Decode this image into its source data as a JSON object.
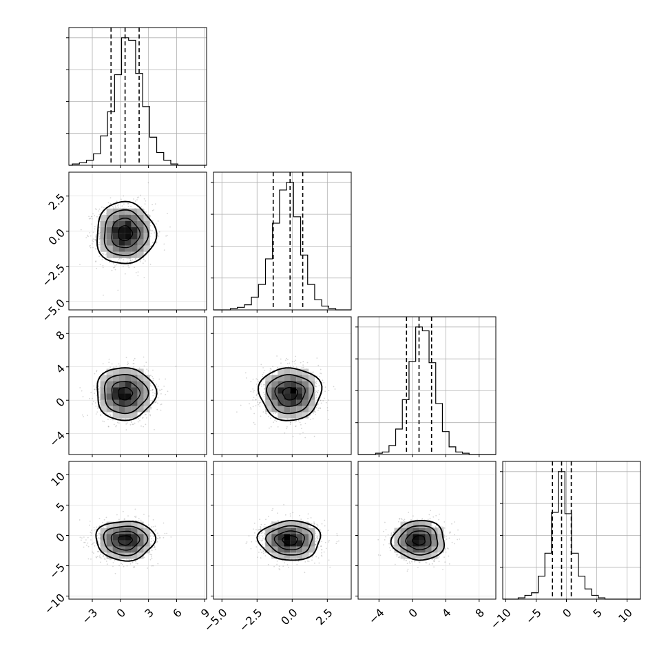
{
  "chart_data": {
    "type": "corner",
    "n_params": 4,
    "params": [
      {
        "range": [
          -5.5,
          9.2
        ],
        "ticks": [
          -3,
          0,
          3,
          6,
          9
        ],
        "tick_labels": [
          "−3",
          "0",
          "3",
          "6",
          "9"
        ],
        "quantiles": [
          -1.0,
          0.5,
          2.0
        ]
      },
      {
        "range": [
          -5.6,
          4.2
        ],
        "ticks": [
          -5.0,
          -2.5,
          0.0,
          2.5
        ],
        "tick_labels": [
          "−5.0",
          "−2.5",
          "0.0",
          "2.5"
        ],
        "quantiles": [
          -1.35,
          -0.15,
          0.75
        ]
      },
      {
        "range": [
          -6.5,
          10.0
        ],
        "ticks": [
          -4,
          0,
          4,
          8
        ],
        "tick_labels": [
          "−4",
          "0",
          "4",
          "8"
        ],
        "quantiles": [
          -0.7,
          0.8,
          2.3
        ]
      },
      {
        "range": [
          -10.5,
          12.2
        ],
        "ticks": [
          -10,
          -5,
          0,
          5,
          10
        ],
        "tick_labels": [
          "−10",
          "−5",
          "0",
          "5",
          "10"
        ],
        "quantiles": [
          -2.3,
          -0.8,
          0.8
        ]
      }
    ],
    "histograms": [
      {
        "bin_width": 0.75,
        "counts": [
          0.01,
          0.02,
          0.04,
          0.09,
          0.23,
          0.42,
          0.71,
          1.0,
          0.98,
          0.72,
          0.46,
          0.22,
          0.1,
          0.04,
          0.01
        ]
      },
      {
        "bin_width": 0.5,
        "counts": [
          0.01,
          0.02,
          0.04,
          0.1,
          0.2,
          0.4,
          0.68,
          0.94,
          1.0,
          0.73,
          0.43,
          0.2,
          0.08,
          0.03,
          0.01
        ]
      },
      {
        "bin_width": 0.8,
        "counts": [
          0.01,
          0.02,
          0.07,
          0.2,
          0.43,
          0.73,
          1.0,
          0.97,
          0.72,
          0.4,
          0.18,
          0.06,
          0.02,
          0.01
        ]
      },
      {
        "bin_width": 1.1,
        "counts": [
          0.01,
          0.03,
          0.05,
          0.18,
          0.36,
          0.68,
          1.0,
          0.67,
          0.36,
          0.18,
          0.08,
          0.03,
          0.01
        ]
      }
    ],
    "grid": true,
    "points_per_panel": 1300
  }
}
